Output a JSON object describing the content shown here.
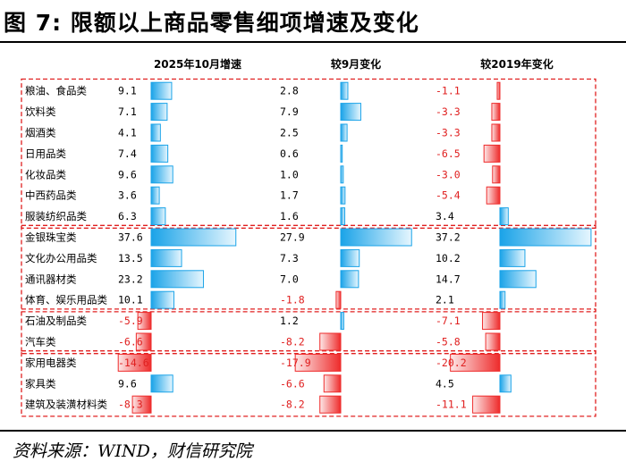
{
  "figure_title": "图 7: 限额以上商品零售细项增速及变化",
  "source": "资料来源：WIND，财信研究院",
  "colors": {
    "positive_fill": "#1aa3e8",
    "positive_light": "#e6f6fe",
    "negative_fill": "#ee2b2b",
    "negative_light": "#fde8e8",
    "negative_text": "#e02020",
    "group_border": "#e02020"
  },
  "chart_data": {
    "type": "table",
    "columns": [
      "2025年10月增速",
      "较9月变化",
      "较2019年变化"
    ],
    "rows": [
      {
        "category": "粮油、食品类",
        "values": [
          9.1,
          2.8,
          -1.1
        ]
      },
      {
        "category": "饮料类",
        "values": [
          7.1,
          7.9,
          -3.3
        ]
      },
      {
        "category": "烟酒类",
        "values": [
          4.1,
          2.5,
          -3.3
        ]
      },
      {
        "category": "日用品类",
        "values": [
          7.4,
          0.6,
          -6.5
        ]
      },
      {
        "category": "化妆品类",
        "values": [
          9.6,
          1.0,
          -3.0
        ]
      },
      {
        "category": "中西药品类",
        "values": [
          3.6,
          1.7,
          -5.4
        ]
      },
      {
        "category": "服装纺织品类",
        "values": [
          6.3,
          1.6,
          3.4
        ]
      },
      {
        "category": "金银珠宝类",
        "values": [
          37.6,
          27.9,
          37.2
        ]
      },
      {
        "category": "文化办公用品类",
        "values": [
          13.5,
          7.3,
          10.2
        ]
      },
      {
        "category": "通讯器材类",
        "values": [
          23.2,
          7.0,
          14.7
        ]
      },
      {
        "category": "体育、娱乐用品类",
        "values": [
          10.1,
          -1.8,
          2.1
        ]
      },
      {
        "category": "石油及制品类",
        "values": [
          -5.9,
          1.2,
          -7.1
        ]
      },
      {
        "category": "汽车类",
        "values": [
          -6.6,
          -8.2,
          -5.8
        ]
      },
      {
        "category": "家用电器类",
        "values": [
          -14.6,
          -17.9,
          -20.2
        ]
      },
      {
        "category": "家具类",
        "values": [
          9.6,
          -6.6,
          4.5
        ]
      },
      {
        "category": "建筑及装潢材料类",
        "values": [
          -8.3,
          -8.2,
          -11.1
        ]
      }
    ],
    "groups": [
      [
        0,
        6
      ],
      [
        7,
        10
      ],
      [
        11,
        12
      ],
      [
        13,
        15
      ]
    ]
  }
}
